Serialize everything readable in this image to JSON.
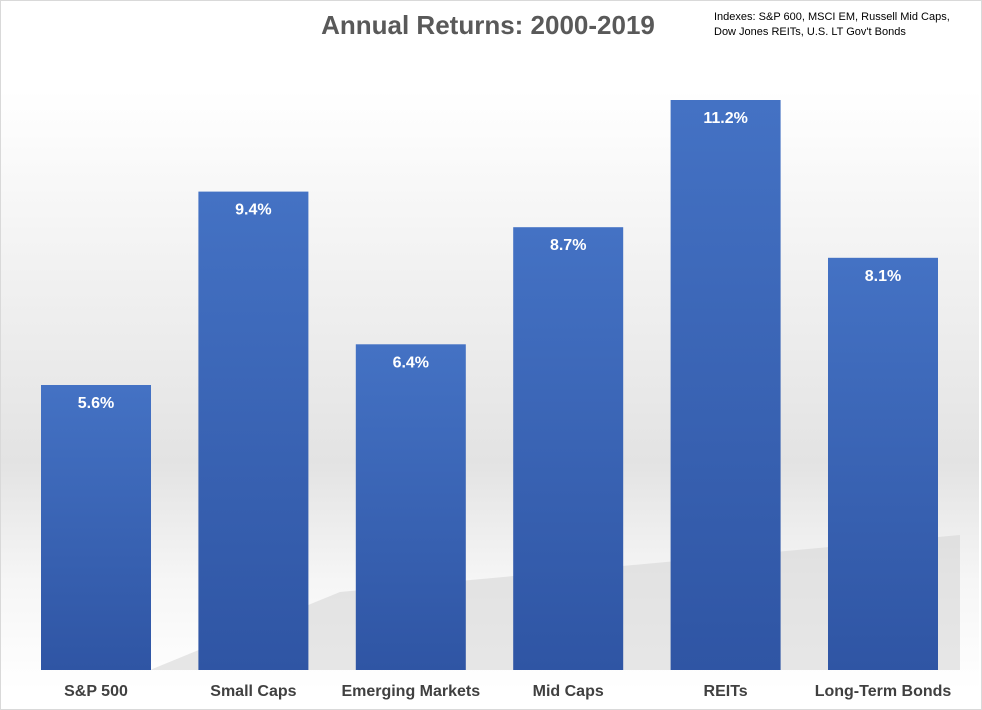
{
  "chart_data": {
    "type": "bar",
    "title": "Annual Returns: 2000-2019",
    "note": "Indexes: S&P 600, MSCI EM, Russell Mid Caps, Dow Jones REITs, U.S. LT Gov't Bonds",
    "categories": [
      "S&P 500",
      "Small Caps",
      "Emerging Markets",
      "Mid Caps",
      "REITs",
      "Long-Term Bonds"
    ],
    "values": [
      5.6,
      9.4,
      6.4,
      8.7,
      11.2,
      8.1
    ],
    "value_labels": [
      "5.6%",
      "9.4%",
      "6.4%",
      "8.7%",
      "11.2%",
      "8.1%"
    ],
    "xlabel": "",
    "ylabel": "",
    "ylim": [
      0,
      11.2
    ],
    "grid": false,
    "legend": "none",
    "bar_color": "#4472c4",
    "bar_color_dark": "#2f55a4"
  }
}
